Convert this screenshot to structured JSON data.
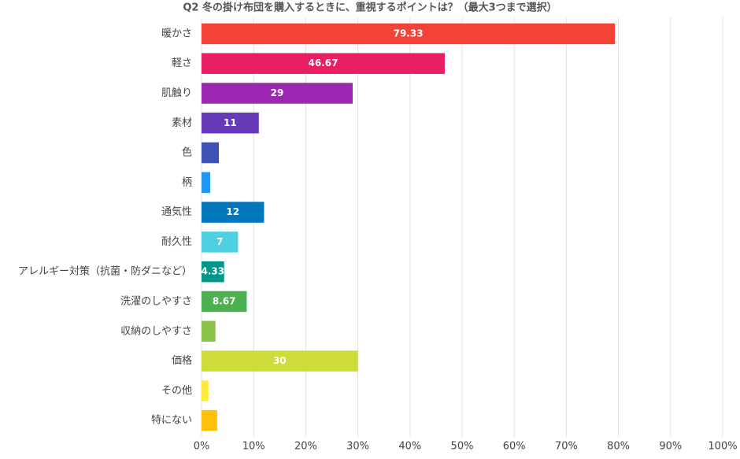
{
  "chart_data": {
    "type": "bar",
    "orientation": "horizontal",
    "title": "Q2 冬の掛け布団を購入するときに、重視するポイントは？（最大3つまで選択）",
    "categories": [
      "暖かさ",
      "軽さ",
      "肌触り",
      "素材",
      "色",
      "柄",
      "通気性",
      "耐久性",
      "アレルギー対策（抗菌・防ダニなど）",
      "洗濯のしやすさ",
      "収納のしやすさ",
      "価格",
      "その他",
      "特にない"
    ],
    "values": [
      79.33,
      46.67,
      29,
      11,
      3.33,
      1.67,
      12,
      7,
      4.33,
      8.67,
      2.67,
      30,
      1.33,
      3
    ],
    "value_labels": [
      "79.33",
      "46.67",
      "29",
      "11",
      null,
      null,
      "12",
      "7",
      "4.33",
      "8.67",
      null,
      "30",
      null,
      null
    ],
    "colors": [
      "#f44336",
      "#e91e63",
      "#9c27b0",
      "#673ab7",
      "#3f51b5",
      "#2196f3",
      "#0277bd",
      "#4dd0e1",
      "#009688",
      "#4caf50",
      "#8bc34a",
      "#cddc39",
      "#ffeb3b",
      "#ffc107"
    ],
    "xlim": [
      0,
      100
    ],
    "xticks": [
      {
        "value": 0,
        "label": "0%"
      },
      {
        "value": 10,
        "label": "10%"
      },
      {
        "value": 20,
        "label": "20%"
      },
      {
        "value": 30,
        "label": "30%"
      },
      {
        "value": 40,
        "label": "40%"
      },
      {
        "value": 50,
        "label": "50%"
      },
      {
        "value": 60,
        "label": "60%"
      },
      {
        "value": 70,
        "label": "70%"
      },
      {
        "value": 80,
        "label": "80%"
      },
      {
        "value": 90,
        "label": "90%"
      },
      {
        "value": 100,
        "label": "100%"
      }
    ],
    "grid": true
  }
}
